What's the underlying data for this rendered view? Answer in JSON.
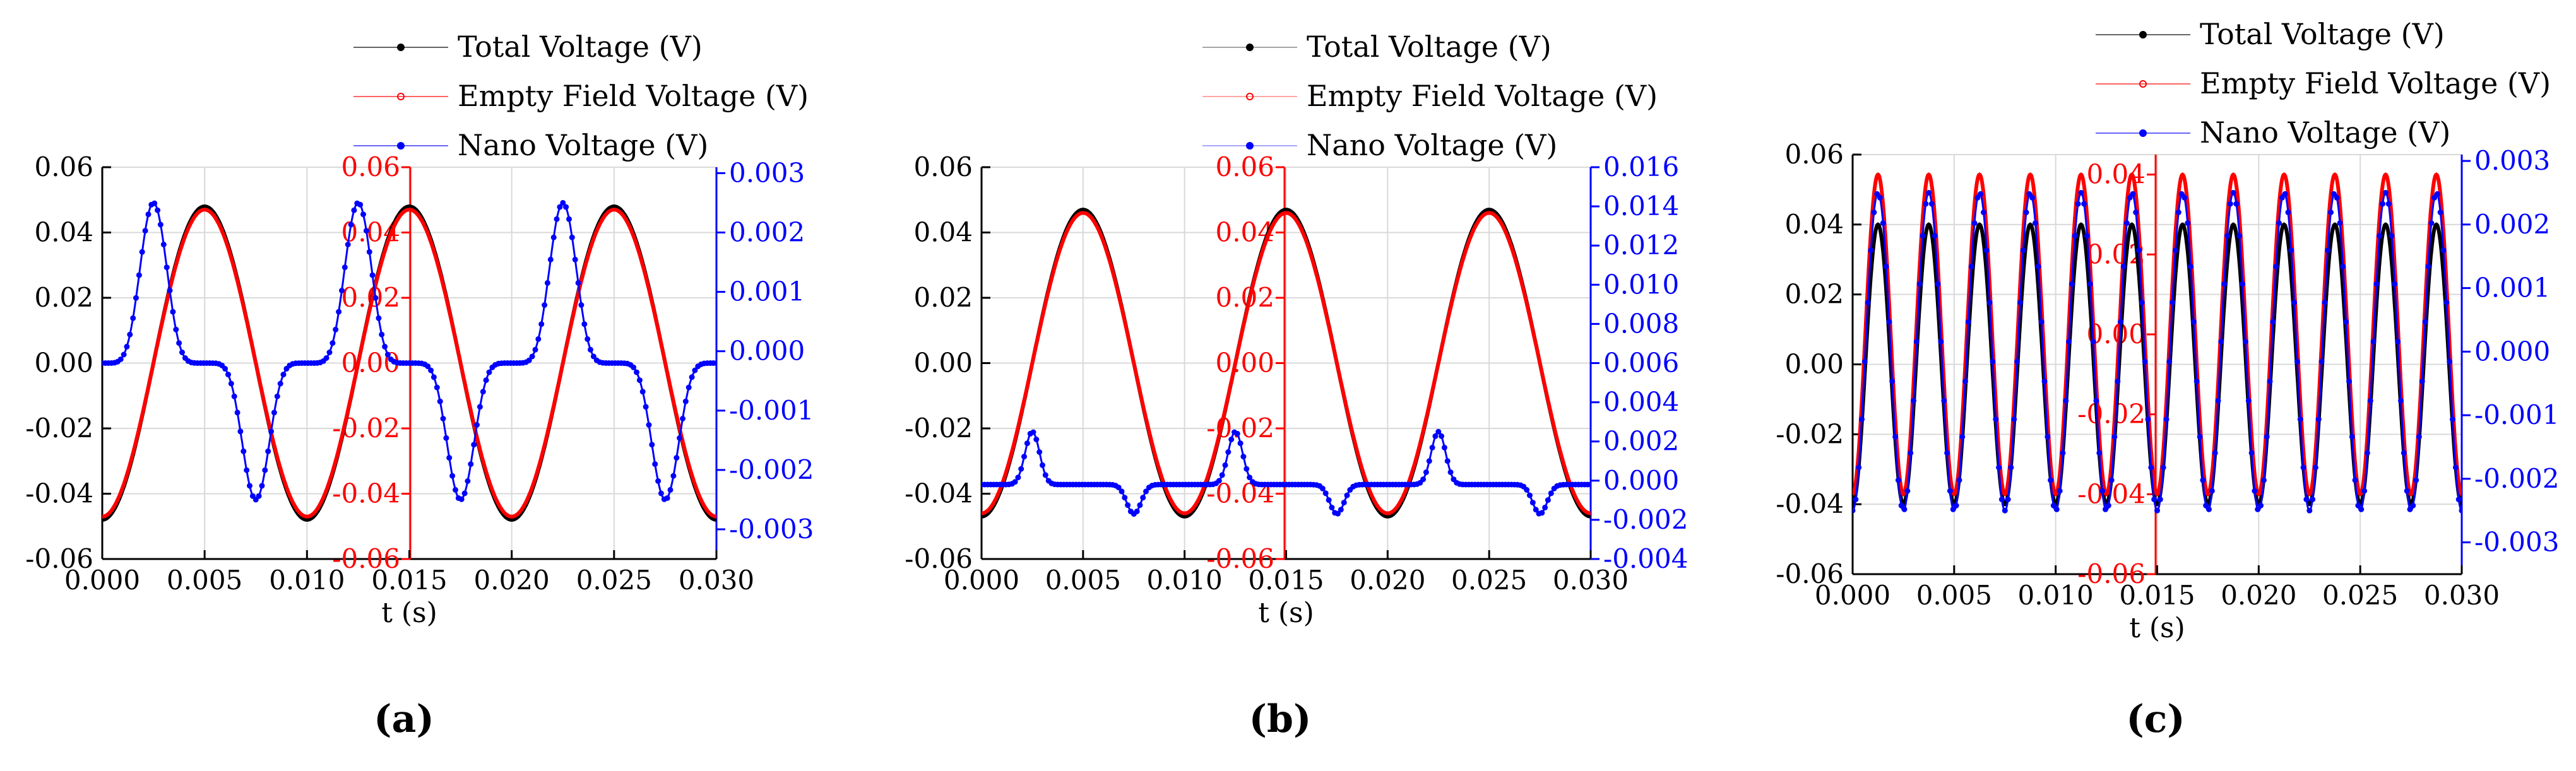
{
  "chart_data": [
    {
      "panel_label": "(a)",
      "type": "line",
      "xlabel": "t (s)",
      "xlim": [
        0.0,
        0.03
      ],
      "xticks": [
        "0.000",
        "0.005",
        "0.010",
        "0.015",
        "0.020",
        "0.025",
        "0.030"
      ],
      "axes": {
        "left": {
          "color": "#000000",
          "ylim": [
            -0.06,
            0.06
          ],
          "ticks": [
            "-0.06",
            "-0.04",
            "-0.02",
            "0.00",
            "0.02",
            "0.04",
            "0.06"
          ]
        },
        "middle": {
          "color": "#ff0000",
          "ylim": [
            -0.06,
            0.06
          ],
          "ticks": [
            "-0.06",
            "-0.04",
            "-0.02",
            "0.00",
            "0.02",
            "0.04",
            "0.06"
          ]
        },
        "right": {
          "color": "#0000ff",
          "ylim": [
            -0.0035,
            0.0031
          ],
          "ticks": [
            "-0.003",
            "-0.002",
            "-0.001",
            "0.000",
            "0.001",
            "0.002",
            "0.003"
          ]
        }
      },
      "series": [
        {
          "name": "Total Voltage (V)",
          "color": "#000000",
          "axis": "left",
          "model": "sine",
          "amplitude": 0.048,
          "frequency_hz": 100,
          "phase_deg": -90
        },
        {
          "name": "Empty Field Voltage (V)",
          "color": "#ff0000",
          "axis": "middle",
          "model": "sine",
          "amplitude": 0.047,
          "frequency_hz": 100,
          "phase_deg": -90
        },
        {
          "name": "Nano Voltage (V)",
          "color": "#0000ff",
          "axis": "right",
          "model": "peaked",
          "frequency_hz": 100,
          "peak": 0.0025,
          "trough": -0.0025,
          "baseline": -0.0002,
          "sharpness": 6
        }
      ]
    },
    {
      "panel_label": "(b)",
      "type": "line",
      "xlabel": "t (s)",
      "xlim": [
        0.0,
        0.03
      ],
      "xticks": [
        "0.000",
        "0.005",
        "0.010",
        "0.015",
        "0.020",
        "0.025",
        "0.030"
      ],
      "axes": {
        "left": {
          "color": "#000000",
          "ylim": [
            -0.06,
            0.06
          ],
          "ticks": [
            "-0.06",
            "-0.04",
            "-0.02",
            "0.00",
            "0.02",
            "0.04",
            "0.06"
          ]
        },
        "middle": {
          "color": "#ff0000",
          "ylim": [
            -0.06,
            0.06
          ],
          "ticks": [
            "-0.06",
            "-0.04",
            "-0.02",
            "0.00",
            "0.02",
            "0.04",
            "0.06"
          ]
        },
        "right": {
          "color": "#0000ff",
          "ylim": [
            -0.004,
            0.016
          ],
          "ticks": [
            "-0.004",
            "-0.002",
            "0.000",
            "0.002",
            "0.004",
            "0.006",
            "0.008",
            "0.010",
            "0.012",
            "0.014",
            "0.016"
          ]
        }
      },
      "series": [
        {
          "name": "Total Voltage (V)",
          "color": "#000000",
          "axis": "left",
          "model": "sine",
          "amplitude": 0.047,
          "frequency_hz": 100,
          "phase_deg": -90
        },
        {
          "name": "Empty Field Voltage (V)",
          "color": "#ff0000",
          "axis": "middle",
          "model": "sine",
          "amplitude": 0.046,
          "frequency_hz": 100,
          "phase_deg": -90
        },
        {
          "name": "Nano Voltage (V)",
          "color": "#0000ff",
          "axis": "right",
          "model": "peaked",
          "frequency_hz": 100,
          "peak": 0.0025,
          "trough": -0.0017,
          "baseline": -0.0002,
          "sharpness": 20
        }
      ]
    },
    {
      "panel_label": "(c)",
      "type": "line",
      "xlabel": "t (s)",
      "xlim": [
        0.0,
        0.03
      ],
      "xticks": [
        "0.000",
        "0.005",
        "0.010",
        "0.015",
        "0.020",
        "0.025",
        "0.030"
      ],
      "axes": {
        "left": {
          "color": "#000000",
          "ylim": [
            -0.06,
            0.06
          ],
          "ticks": [
            "-0.06",
            "-0.04",
            "-0.02",
            "0.00",
            "0.02",
            "0.04",
            "0.06"
          ]
        },
        "middle": {
          "color": "#ff0000",
          "ylim": [
            -0.06,
            0.045
          ],
          "ticks": [
            "-0.06",
            "-0.04",
            "-0.02",
            "0.00",
            "0.02",
            "0.04"
          ]
        },
        "right": {
          "color": "#0000ff",
          "ylim": [
            -0.0035,
            0.0031
          ],
          "ticks": [
            "-0.003",
            "-0.002",
            "-0.001",
            "0.000",
            "0.001",
            "0.002",
            "0.003"
          ]
        }
      },
      "series": [
        {
          "name": "Total Voltage (V)",
          "color": "#000000",
          "axis": "left",
          "model": "sine",
          "amplitude": 0.04,
          "frequency_hz": 400,
          "phase_deg": -90
        },
        {
          "name": "Empty Field Voltage (V)",
          "color": "#ff0000",
          "axis": "middle",
          "model": "sine",
          "amplitude": 0.04,
          "frequency_hz": 400,
          "phase_deg": -90
        },
        {
          "name": "Nano Voltage (V)",
          "color": "#0000ff",
          "axis": "right",
          "model": "sine",
          "amplitude": 0.0025,
          "frequency_hz": 400,
          "phase_deg": -90
        }
      ]
    }
  ]
}
